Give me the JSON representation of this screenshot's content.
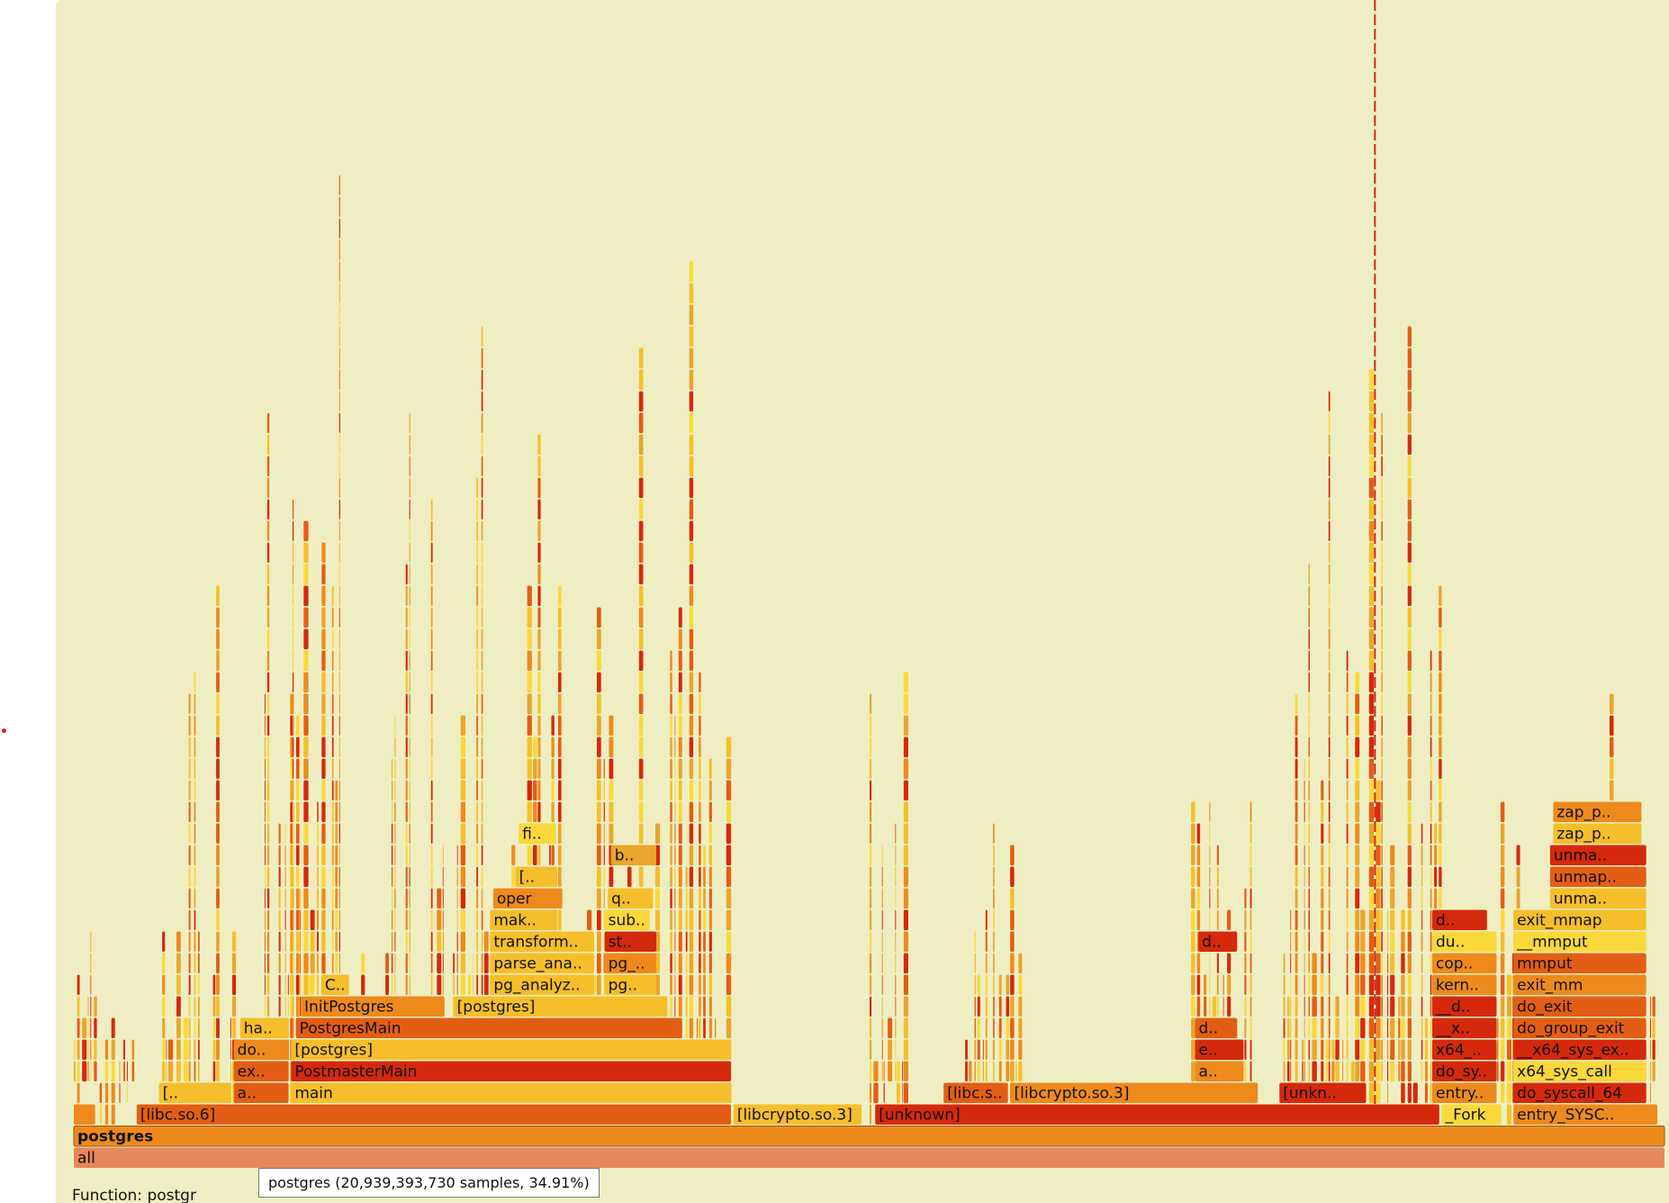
{
  "colors": {
    "background": "#eeeec2",
    "palette": [
      "#f6be2a",
      "#ee8a1c",
      "#e35e14",
      "#d5290d",
      "#fbd83a",
      "#e9a52d"
    ],
    "root": "#e5875a",
    "root_text": "#9a8f80",
    "tooltip_bg": "#ffffff"
  },
  "tooltip": {
    "text": "postgres (20,939,393,730 samples, 34.91%)"
  },
  "function_line": {
    "text": "Function: postgr"
  },
  "chart_data": {
    "type": "flamegraph",
    "unit": "fraction of total width",
    "frames": [
      {
        "label": "all",
        "depth": 0,
        "start": 0.0,
        "end": 1.0,
        "color": "root"
      },
      {
        "label": "postgres",
        "depth": 1,
        "start": 0.0,
        "end": 1.0,
        "color": 1,
        "bold": true
      },
      {
        "label": "",
        "depth": 2,
        "start": 0.0,
        "end": 0.014,
        "color": 1
      },
      {
        "label": "[libc.so.6]",
        "depth": 2,
        "start": 0.0395,
        "end": 0.4135,
        "color": 2
      },
      {
        "label": "[libcrypto.so.3]",
        "depth": 2,
        "start": 0.4145,
        "end": 0.4955,
        "color": 0
      },
      {
        "label": "[unknown]",
        "depth": 2,
        "start": 0.5035,
        "end": 0.8585,
        "color": 3
      },
      {
        "label": "_Fork",
        "depth": 2,
        "start": 0.8595,
        "end": 0.8975,
        "color": 4
      },
      {
        "label": "entry_SYSC..",
        "depth": 2,
        "start": 0.9045,
        "end": 0.9955,
        "color": 1
      },
      {
        "label": "[..",
        "depth": 3,
        "start": 0.0535,
        "end": 0.0995,
        "color": 0
      },
      {
        "label": "a..",
        "depth": 3,
        "start": 0.1005,
        "end": 0.1355,
        "color": 2
      },
      {
        "label": "main",
        "depth": 3,
        "start": 0.1365,
        "end": 0.4135,
        "color": 0
      },
      {
        "label": "[libc.s..",
        "depth": 3,
        "start": 0.5465,
        "end": 0.5875,
        "color": 2
      },
      {
        "label": "[libcrypto.so.3]",
        "depth": 3,
        "start": 0.5885,
        "end": 0.7445,
        "color": 1
      },
      {
        "label": "[unkn..",
        "depth": 3,
        "start": 0.7575,
        "end": 0.8125,
        "color": 3
      },
      {
        "label": "entry..",
        "depth": 3,
        "start": 0.8535,
        "end": 0.8945,
        "color": 1
      },
      {
        "label": "do_syscall_64",
        "depth": 3,
        "start": 0.9045,
        "end": 0.9885,
        "color": 3
      },
      {
        "label": "ex..",
        "depth": 4,
        "start": 0.1005,
        "end": 0.1355,
        "color": 2
      },
      {
        "label": "PostmasterMain",
        "depth": 4,
        "start": 0.1365,
        "end": 0.4135,
        "color": 3
      },
      {
        "label": "a..",
        "depth": 4,
        "start": 0.7045,
        "end": 0.7355,
        "color": 1
      },
      {
        "label": "do_sy..",
        "depth": 4,
        "start": 0.8535,
        "end": 0.8945,
        "color": 3
      },
      {
        "label": "x64_sys_call",
        "depth": 4,
        "start": 0.9045,
        "end": 0.9885,
        "color": 4
      },
      {
        "label": "do..",
        "depth": 5,
        "start": 0.1005,
        "end": 0.1355,
        "color": 1
      },
      {
        "label": "[postgres]",
        "depth": 5,
        "start": 0.1365,
        "end": 0.4135,
        "color": 0
      },
      {
        "label": "e..",
        "depth": 5,
        "start": 0.7045,
        "end": 0.7355,
        "color": 3
      },
      {
        "label": "x64_..",
        "depth": 5,
        "start": 0.8535,
        "end": 0.8945,
        "color": 3
      },
      {
        "label": "__x64_sys_ex..",
        "depth": 5,
        "start": 0.9045,
        "end": 0.9885,
        "color": 3
      },
      {
        "label": "ha..",
        "depth": 6,
        "start": 0.1045,
        "end": 0.1355,
        "color": 0
      },
      {
        "label": "PostgresMain",
        "depth": 6,
        "start": 0.1395,
        "end": 0.3825,
        "color": 2
      },
      {
        "label": "d..",
        "depth": 6,
        "start": 0.7045,
        "end": 0.7315,
        "color": 2
      },
      {
        "label": "__x..",
        "depth": 6,
        "start": 0.8535,
        "end": 0.8945,
        "color": 3
      },
      {
        "label": "do_group_exit",
        "depth": 6,
        "start": 0.9045,
        "end": 0.9885,
        "color": 2
      },
      {
        "label": "InitPostgres",
        "depth": 7,
        "start": 0.1425,
        "end": 0.2335,
        "color": 1
      },
      {
        "label": "[postgres]",
        "depth": 7,
        "start": 0.2385,
        "end": 0.3735,
        "color": 0
      },
      {
        "label": "__d..",
        "depth": 7,
        "start": 0.8535,
        "end": 0.8945,
        "color": 3
      },
      {
        "label": "do_exit",
        "depth": 7,
        "start": 0.9045,
        "end": 0.9885,
        "color": 2
      },
      {
        "label": "C..",
        "depth": 8,
        "start": 0.1555,
        "end": 0.1735,
        "color": 0
      },
      {
        "label": "pg_analyz..",
        "depth": 8,
        "start": 0.2615,
        "end": 0.3275,
        "color": 0
      },
      {
        "label": "pg..",
        "depth": 8,
        "start": 0.3335,
        "end": 0.3665,
        "color": 0
      },
      {
        "label": "kern..",
        "depth": 8,
        "start": 0.8535,
        "end": 0.8945,
        "color": 1
      },
      {
        "label": "exit_mm",
        "depth": 8,
        "start": 0.9045,
        "end": 0.9885,
        "color": 1
      },
      {
        "label": "parse_ana..",
        "depth": 9,
        "start": 0.2615,
        "end": 0.3275,
        "color": 0
      },
      {
        "label": "pg_..",
        "depth": 9,
        "start": 0.3335,
        "end": 0.3665,
        "color": 1
      },
      {
        "label": "cop..",
        "depth": 9,
        "start": 0.8535,
        "end": 0.8945,
        "color": 1
      },
      {
        "label": "mmput",
        "depth": 9,
        "start": 0.9045,
        "end": 0.9885,
        "color": 2
      },
      {
        "label": "transform..",
        "depth": 10,
        "start": 0.2615,
        "end": 0.3275,
        "color": 0
      },
      {
        "label": "st..",
        "depth": 10,
        "start": 0.3335,
        "end": 0.3665,
        "color": 3
      },
      {
        "label": "d..",
        "depth": 10,
        "start": 0.7065,
        "end": 0.7315,
        "color": 3
      },
      {
        "label": "du..",
        "depth": 10,
        "start": 0.8535,
        "end": 0.8945,
        "color": 4
      },
      {
        "label": "__mmput",
        "depth": 10,
        "start": 0.9045,
        "end": 0.9885,
        "color": 4
      },
      {
        "label": "mak..",
        "depth": 11,
        "start": 0.2615,
        "end": 0.3045,
        "color": 0
      },
      {
        "label": "sub..",
        "depth": 11,
        "start": 0.3335,
        "end": 0.3625,
        "color": 4
      },
      {
        "label": "d..",
        "depth": 11,
        "start": 0.8535,
        "end": 0.8885,
        "color": 3
      },
      {
        "label": "exit_mmap",
        "depth": 11,
        "start": 0.9045,
        "end": 0.9885,
        "color": 0
      },
      {
        "label": "oper",
        "depth": 12,
        "start": 0.2635,
        "end": 0.3075,
        "color": 1
      },
      {
        "label": "q..",
        "depth": 12,
        "start": 0.3355,
        "end": 0.3645,
        "color": 0
      },
      {
        "label": "unma..",
        "depth": 12,
        "start": 0.9275,
        "end": 0.9885,
        "color": 0
      },
      {
        "label": "[..",
        "depth": 13,
        "start": 0.2775,
        "end": 0.3045,
        "color": 0
      },
      {
        "label": "unmap..",
        "depth": 13,
        "start": 0.9275,
        "end": 0.9885,
        "color": 2
      },
      {
        "label": "b..",
        "depth": 14,
        "start": 0.3375,
        "end": 0.3665,
        "color": 5
      },
      {
        "label": "unma..",
        "depth": 14,
        "start": 0.9275,
        "end": 0.9885,
        "color": 3
      },
      {
        "label": "fi..",
        "depth": 15,
        "start": 0.2795,
        "end": 0.3035,
        "color": 4
      },
      {
        "label": "zap_p..",
        "depth": 15,
        "start": 0.9295,
        "end": 0.9855,
        "color": 0
      },
      {
        "label": "zap_p..",
        "depth": 16,
        "start": 0.9295,
        "end": 0.9855,
        "color": 1
      }
    ],
    "spike_regions": [
      {
        "start": 0.0,
        "end": 0.038,
        "max_depth": 12,
        "seed": 3
      },
      {
        "start": 0.0555,
        "end": 0.1,
        "max_depth": 30,
        "seed": 7
      },
      {
        "start": 0.115,
        "end": 0.41,
        "max_depth": 45,
        "seed": 11
      },
      {
        "start": 0.1345,
        "end": 0.15,
        "max_depth": 36,
        "seed": 13
      },
      {
        "start": 0.5,
        "end": 0.526,
        "max_depth": 27,
        "seed": 17
      },
      {
        "start": 0.56,
        "end": 0.594,
        "max_depth": 19,
        "seed": 19
      },
      {
        "start": 0.702,
        "end": 0.74,
        "max_depth": 34,
        "seed": 23
      },
      {
        "start": 0.76,
        "end": 0.86,
        "max_depth": 42,
        "seed": 29
      },
      {
        "start": 0.89,
        "end": 0.912,
        "max_depth": 20,
        "seed": 31
      },
      {
        "start": 0.956,
        "end": 0.995,
        "max_depth": 33,
        "seed": 37
      }
    ]
  }
}
